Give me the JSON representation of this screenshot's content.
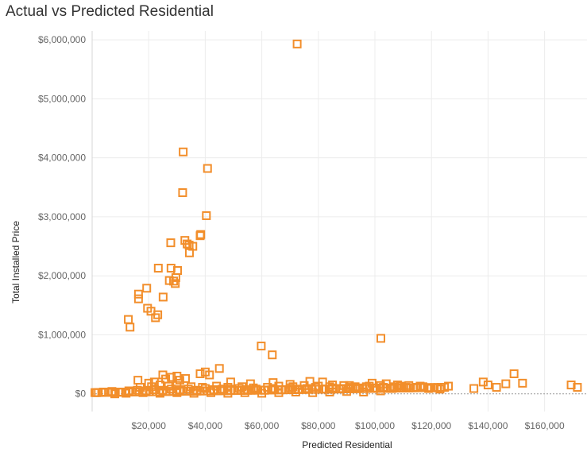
{
  "chart_data": {
    "type": "scatter",
    "title": "Actual vs Predicted Residential",
    "xlabel": "Predicted Residential",
    "ylabel": "Total Installed Price",
    "xlim": [
      0,
      175000
    ],
    "ylim": [
      -300000,
      6150000
    ],
    "x_ticks": [
      20000,
      40000,
      60000,
      80000,
      100000,
      120000,
      140000,
      160000
    ],
    "x_tick_labels": [
      "$20,000",
      "$40,000",
      "$60,000",
      "$80,000",
      "$100,000",
      "$120,000",
      "$140,000",
      "$160,000"
    ],
    "y_ticks": [
      0,
      1000000,
      2000000,
      3000000,
      4000000,
      5000000,
      6000000
    ],
    "y_tick_labels": [
      "$0",
      "$1,000,000",
      "$2,000,000",
      "$3,000,000",
      "$4,000,000",
      "$5,000,000",
      "$6,000,000"
    ],
    "grid": true,
    "marker": "hollow-square",
    "color": "#f28e2b",
    "series": [
      {
        "points": [
          [
            72500,
            5930000
          ],
          [
            32200,
            4100000
          ],
          [
            40800,
            3820000
          ],
          [
            32000,
            3410000
          ],
          [
            40400,
            3020000
          ],
          [
            38400,
            2700000
          ],
          [
            38200,
            2680000
          ],
          [
            27800,
            2560000
          ],
          [
            32800,
            2600000
          ],
          [
            33600,
            2540000
          ],
          [
            35600,
            2500000
          ],
          [
            34300,
            2520000
          ],
          [
            34400,
            2390000
          ],
          [
            23400,
            2130000
          ],
          [
            27900,
            2130000
          ],
          [
            30200,
            2090000
          ],
          [
            29600,
            1970000
          ],
          [
            27300,
            1920000
          ],
          [
            28800,
            1910000
          ],
          [
            29400,
            1870000
          ],
          [
            19300,
            1790000
          ],
          [
            16400,
            1690000
          ],
          [
            16400,
            1610000
          ],
          [
            25100,
            1640000
          ],
          [
            19600,
            1450000
          ],
          [
            20800,
            1400000
          ],
          [
            23200,
            1340000
          ],
          [
            22400,
            1290000
          ],
          [
            12800,
            1260000
          ],
          [
            13400,
            1130000
          ],
          [
            59800,
            810000
          ],
          [
            63700,
            660000
          ],
          [
            102100,
            940000
          ],
          [
            45000,
            430000
          ],
          [
            40000,
            370000
          ],
          [
            38200,
            340000
          ],
          [
            41500,
            320000
          ],
          [
            30000,
            300000
          ],
          [
            25000,
            320000
          ],
          [
            28000,
            280000
          ],
          [
            33000,
            260000
          ],
          [
            16200,
            230000
          ],
          [
            20000,
            180000
          ],
          [
            22000,
            200000
          ],
          [
            26000,
            250000
          ],
          [
            31000,
            230000
          ],
          [
            49000,
            200000
          ],
          [
            56000,
            170000
          ],
          [
            64000,
            190000
          ],
          [
            70000,
            160000
          ],
          [
            77000,
            210000
          ],
          [
            81500,
            200000
          ],
          [
            85000,
            150000
          ],
          [
            91000,
            140000
          ],
          [
            99000,
            180000
          ],
          [
            104000,
            170000
          ],
          [
            108000,
            150000
          ],
          [
            112000,
            140000
          ],
          [
            117000,
            120000
          ],
          [
            122000,
            100000
          ],
          [
            126000,
            130000
          ],
          [
            135000,
            90000
          ],
          [
            138300,
            200000
          ],
          [
            140000,
            150000
          ],
          [
            143000,
            110000
          ],
          [
            146300,
            170000
          ],
          [
            149200,
            340000
          ],
          [
            152200,
            180000
          ],
          [
            169400,
            150000
          ],
          [
            171600,
            110000
          ],
          [
            1500,
            20000
          ],
          [
            4000,
            30000
          ],
          [
            7000,
            40000
          ],
          [
            10000,
            30000
          ],
          [
            13000,
            50000
          ],
          [
            16000,
            60000
          ],
          [
            19000,
            50000
          ],
          [
            22000,
            70000
          ],
          [
            25000,
            60000
          ],
          [
            28000,
            80000
          ],
          [
            31000,
            70000
          ],
          [
            34000,
            80000
          ],
          [
            37000,
            60000
          ],
          [
            40000,
            90000
          ],
          [
            43000,
            70000
          ],
          [
            46000,
            80000
          ],
          [
            49000,
            60000
          ],
          [
            52000,
            90000
          ],
          [
            55000,
            70000
          ],
          [
            58000,
            80000
          ],
          [
            61000,
            60000
          ],
          [
            64000,
            90000
          ],
          [
            67000,
            70000
          ],
          [
            70000,
            100000
          ],
          [
            73000,
            80000
          ],
          [
            76000,
            90000
          ],
          [
            79000,
            110000
          ],
          [
            82000,
            80000
          ],
          [
            85000,
            100000
          ],
          [
            88000,
            90000
          ],
          [
            91000,
            110000
          ],
          [
            94000,
            100000
          ],
          [
            97000,
            120000
          ],
          [
            100000,
            100000
          ],
          [
            103000,
            110000
          ],
          [
            106000,
            90000
          ],
          [
            109000,
            130000
          ],
          [
            112000,
            100000
          ],
          [
            115000,
            110000
          ],
          [
            119000,
            90000
          ],
          [
            123000,
            80000
          ],
          [
            17000,
            110000
          ],
          [
            21000,
            120000
          ],
          [
            24000,
            150000
          ],
          [
            27000,
            130000
          ],
          [
            30000,
            140000
          ],
          [
            35000,
            120000
          ],
          [
            39000,
            110000
          ],
          [
            44000,
            130000
          ],
          [
            48000,
            110000
          ],
          [
            53000,
            120000
          ],
          [
            57000,
            100000
          ],
          [
            62000,
            110000
          ],
          [
            66000,
            130000
          ],
          [
            71000,
            120000
          ],
          [
            75000,
            140000
          ],
          [
            80000,
            130000
          ],
          [
            84000,
            120000
          ],
          [
            89000,
            140000
          ],
          [
            93000,
            120000
          ],
          [
            98000,
            130000
          ],
          [
            102000,
            140000
          ],
          [
            107000,
            120000
          ],
          [
            111000,
            110000
          ],
          [
            116000,
            130000
          ],
          [
            8000,
            0
          ],
          [
            12000,
            10000
          ],
          [
            18000,
            20000
          ],
          [
            24000,
            10000
          ],
          [
            30000,
            20000
          ],
          [
            36000,
            10000
          ],
          [
            42000,
            20000
          ],
          [
            48000,
            10000
          ],
          [
            54000,
            20000
          ],
          [
            60000,
            10000
          ],
          [
            66000,
            20000
          ],
          [
            72000,
            30000
          ],
          [
            78000,
            20000
          ],
          [
            84000,
            30000
          ],
          [
            90000,
            40000
          ],
          [
            96000,
            30000
          ],
          [
            102000,
            50000
          ]
        ]
      }
    ]
  }
}
